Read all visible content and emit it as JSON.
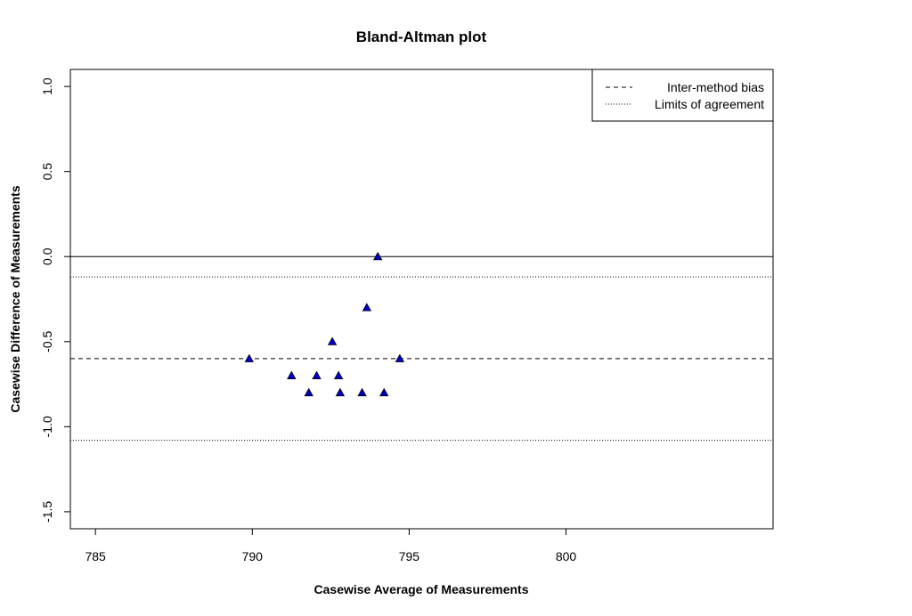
{
  "chart_data": {
    "type": "scatter",
    "title": "Bland-Altman plot",
    "xlabel": "Casewise Average of Measurements",
    "ylabel": "Casewise Difference of Measurements",
    "xlim": [
      784.2,
      806.6
    ],
    "ylim": [
      -1.6,
      1.1
    ],
    "x_ticks": [
      785,
      790,
      795,
      800
    ],
    "x_tick_labels": [
      "785",
      "790",
      "795",
      "800"
    ],
    "y_ticks": [
      1.0,
      0.5,
      0.0,
      -0.5,
      -1.0,
      -1.5
    ],
    "y_tick_labels": [
      "1.0",
      "0.5",
      "0.0",
      "-0.5",
      "-1.0",
      "-1.5"
    ],
    "grid": false,
    "points": {
      "color": "#0000cc",
      "marker": "filled-triangle",
      "x": [
        789.9,
        791.25,
        791.8,
        792.05,
        792.55,
        792.75,
        792.8,
        793.5,
        793.65,
        794.0,
        794.2,
        794.7
      ],
      "y": [
        -0.6,
        -0.7,
        -0.8,
        -0.7,
        -0.5,
        -0.7,
        -0.8,
        -0.8,
        -0.3,
        0.0,
        -0.8,
        -0.6
      ]
    },
    "reference_lines": [
      {
        "name": "zero",
        "y": 0.0,
        "style": "solid"
      },
      {
        "name": "Inter-method bias",
        "y": -0.6,
        "style": "dashed"
      },
      {
        "name": "Limits of agreement",
        "y": -0.12,
        "style": "dotted"
      },
      {
        "name": "Limits of agreement",
        "y": -1.08,
        "style": "dotted"
      }
    ],
    "legend": {
      "position": "top-right",
      "entries": [
        {
          "label": "Inter-method bias",
          "style": "dashed"
        },
        {
          "label": "Limits of agreement",
          "style": "dotted"
        }
      ]
    }
  }
}
